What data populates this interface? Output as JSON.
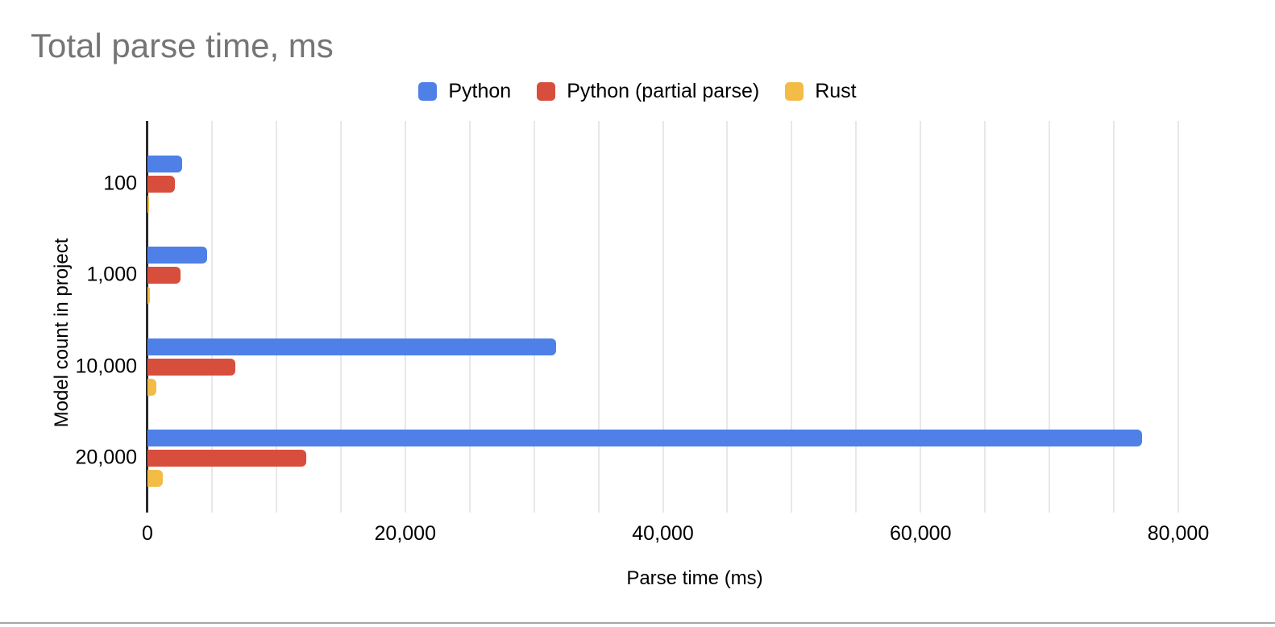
{
  "page": {
    "background": "#ffffff",
    "bottom_divider_color": "#a6a6a6"
  },
  "chart_data": {
    "type": "bar",
    "orientation": "horizontal",
    "title": "Total parse time, ms",
    "title_color": "#757575",
    "xlabel": "Parse time (ms)",
    "ylabel": "Model count in project",
    "categories": [
      "100",
      "1,000",
      "10,000",
      "20,000"
    ],
    "series": [
      {
        "name": "Python",
        "color": "#4E80E8",
        "values": [
          2700,
          4650,
          31700,
          77200
        ]
      },
      {
        "name": "Python (partial parse)",
        "color": "#D84E3D",
        "values": [
          2130,
          2560,
          6820,
          12300
        ]
      },
      {
        "name": "Rust",
        "color": "#F2BC47",
        "values": [
          150,
          160,
          690,
          1170
        ]
      }
    ],
    "xlim": [
      0,
      80000
    ],
    "x_ticks": [
      {
        "value": 0,
        "label": "0"
      },
      {
        "value": 20000,
        "label": "20,000"
      },
      {
        "value": 40000,
        "label": "40,000"
      },
      {
        "value": 60000,
        "label": "60,000"
      },
      {
        "value": 80000,
        "label": "80,000"
      }
    ],
    "grid_step": 5000,
    "grid_color": "#e8e8e8",
    "axis_color": "#2b2b2b",
    "legend_position": "top-center",
    "unit": "ms"
  }
}
